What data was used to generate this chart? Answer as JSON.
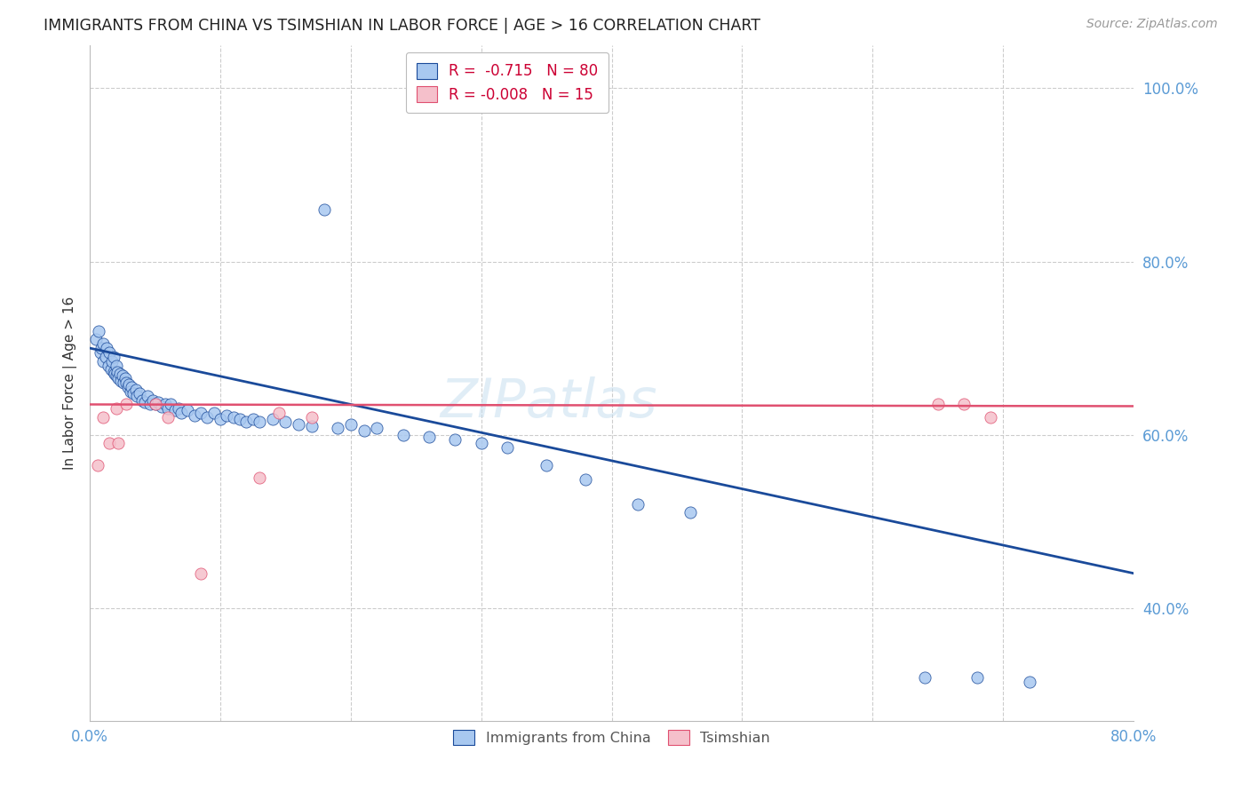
{
  "title": "IMMIGRANTS FROM CHINA VS TSIMSHIAN IN LABOR FORCE | AGE > 16 CORRELATION CHART",
  "source": "Source: ZipAtlas.com",
  "ylabel": "In Labor Force | Age > 16",
  "xlim": [
    0.0,
    0.8
  ],
  "ylim": [
    0.27,
    1.05
  ],
  "ytick_right_labels": [
    "100.0%",
    "80.0%",
    "60.0%",
    "40.0%"
  ],
  "ytick_right_values": [
    1.0,
    0.8,
    0.6,
    0.4
  ],
  "blue_color": "#a8c8f0",
  "pink_color": "#f5c0cb",
  "trendline_blue": "#1a4a9a",
  "trendline_pink": "#e05070",
  "watermark": "ZIPatlas",
  "china_x": [
    0.005,
    0.007,
    0.008,
    0.009,
    0.01,
    0.01,
    0.012,
    0.013,
    0.014,
    0.015,
    0.016,
    0.017,
    0.018,
    0.018,
    0.019,
    0.02,
    0.02,
    0.021,
    0.022,
    0.023,
    0.024,
    0.025,
    0.026,
    0.027,
    0.028,
    0.029,
    0.03,
    0.031,
    0.032,
    0.033,
    0.035,
    0.036,
    0.038,
    0.04,
    0.042,
    0.044,
    0.046,
    0.048,
    0.05,
    0.052,
    0.055,
    0.058,
    0.06,
    0.062,
    0.065,
    0.068,
    0.07,
    0.075,
    0.08,
    0.085,
    0.09,
    0.095,
    0.1,
    0.105,
    0.11,
    0.115,
    0.12,
    0.125,
    0.13,
    0.14,
    0.15,
    0.16,
    0.17,
    0.18,
    0.19,
    0.2,
    0.21,
    0.22,
    0.24,
    0.26,
    0.28,
    0.3,
    0.32,
    0.35,
    0.38,
    0.42,
    0.46,
    0.64,
    0.68,
    0.72
  ],
  "china_y": [
    0.71,
    0.72,
    0.695,
    0.7,
    0.685,
    0.705,
    0.69,
    0.7,
    0.68,
    0.695,
    0.675,
    0.685,
    0.672,
    0.69,
    0.67,
    0.668,
    0.68,
    0.672,
    0.665,
    0.67,
    0.662,
    0.668,
    0.66,
    0.665,
    0.66,
    0.655,
    0.658,
    0.65,
    0.655,
    0.648,
    0.652,
    0.645,
    0.648,
    0.64,
    0.638,
    0.645,
    0.635,
    0.64,
    0.635,
    0.638,
    0.632,
    0.635,
    0.63,
    0.635,
    0.628,
    0.63,
    0.625,
    0.628,
    0.622,
    0.625,
    0.62,
    0.625,
    0.618,
    0.622,
    0.62,
    0.618,
    0.615,
    0.618,
    0.615,
    0.618,
    0.615,
    0.612,
    0.61,
    0.86,
    0.608,
    0.612,
    0.605,
    0.608,
    0.6,
    0.598,
    0.595,
    0.59,
    0.585,
    0.565,
    0.548,
    0.52,
    0.51,
    0.32,
    0.32,
    0.315
  ],
  "tsimshian_x": [
    0.006,
    0.01,
    0.015,
    0.02,
    0.022,
    0.028,
    0.05,
    0.06,
    0.085,
    0.13,
    0.145,
    0.17,
    0.65,
    0.67,
    0.69
  ],
  "tsimshian_y": [
    0.565,
    0.62,
    0.59,
    0.63,
    0.59,
    0.635,
    0.635,
    0.62,
    0.44,
    0.55,
    0.625,
    0.62,
    0.635,
    0.635,
    0.62
  ],
  "blue_trend_x0": 0.0,
  "blue_trend_y0": 0.7,
  "blue_trend_x1": 0.8,
  "blue_trend_y1": 0.44,
  "pink_trend_x0": 0.0,
  "pink_trend_y0": 0.635,
  "pink_trend_x1": 0.8,
  "pink_trend_y1": 0.633
}
